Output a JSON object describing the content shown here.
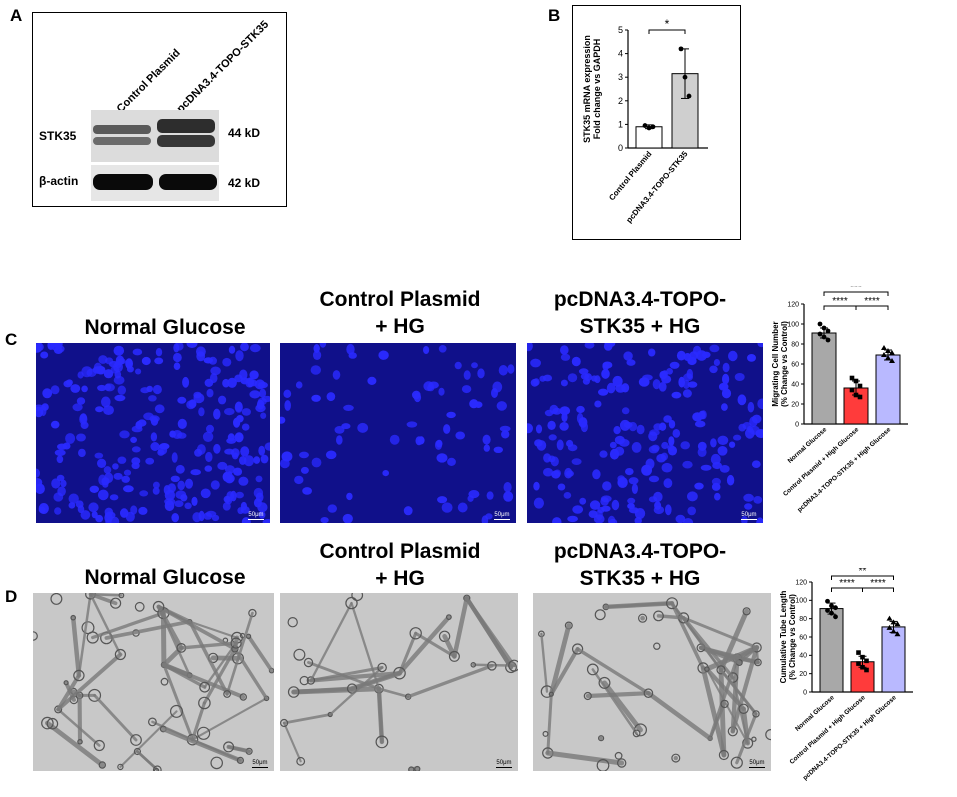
{
  "panel_labels": {
    "a": "A",
    "b": "B",
    "c": "C",
    "d": "D"
  },
  "panel_a": {
    "lane_labels": [
      "Control Plasmid",
      "pcDNA3.4-TOPO-STK35"
    ],
    "row_labels": [
      "STK35",
      "β-actin"
    ],
    "sizes": [
      "44 kD",
      "42 kD"
    ]
  },
  "conditions": {
    "normal": "Normal Glucose",
    "control": "Control Plasmid\n+ HG",
    "stk35": "pcDNA3.4-TOPO-\nSTK35 + HG"
  },
  "scale_bar_label": "50μm",
  "colors": {
    "nuclei_bg": "#10108a",
    "nuclei": "#2a2aff",
    "bar_normal": "#a8a8a8",
    "bar_control": "#ff3b3b",
    "bar_stk35": "#b9b9ff",
    "brightfield_bg": "#c8c8c8"
  },
  "chart_data": [
    {
      "type": "bar",
      "panel": "B",
      "categories": [
        "Control Plasmid",
        "pcDNA3.4-TOPO-STK35"
      ],
      "values": [
        0.9,
        3.15
      ],
      "errors": [
        0.08,
        1.05
      ],
      "points": [
        [
          0.95,
          0.85,
          0.9
        ],
        [
          4.2,
          3.0,
          2.2
        ]
      ],
      "ylabel_lines": [
        "STK35 mRNA expression",
        "Fold change vs GAPDH"
      ],
      "ylim": [
        0,
        5
      ],
      "yticks": [
        "0",
        "1",
        "2",
        "3",
        "4",
        "5"
      ],
      "significance": [
        {
          "from": 0,
          "to": 1,
          "label": "*"
        }
      ]
    },
    {
      "type": "bar",
      "panel": "C",
      "categories": [
        "Normal Glucose",
        "Control Plasmid + High Glucose",
        "pcDNA3.4-TOPO-STK35 + High Glucose"
      ],
      "values": [
        91,
        36,
        69
      ],
      "errors": [
        5,
        7,
        5
      ],
      "points": [
        [
          100,
          96,
          93,
          90,
          87,
          84
        ],
        [
          46,
          43,
          38,
          34,
          29,
          27
        ],
        [
          76,
          73,
          71,
          69,
          66,
          63
        ]
      ],
      "ylabel_lines": [
        "Migrating Cell Number",
        "(% Change vs Control)"
      ],
      "ylim": [
        0,
        120
      ],
      "yticks": [
        "0",
        "20",
        "40",
        "60",
        "80",
        "100",
        "120"
      ],
      "significance": [
        {
          "from": 0,
          "to": 1,
          "label": "****"
        },
        {
          "from": 1,
          "to": 2,
          "label": "****"
        },
        {
          "from": 0,
          "to": 2,
          "label": "***"
        }
      ]
    },
    {
      "type": "bar",
      "panel": "D",
      "categories": [
        "Normal Glucose",
        "Control Plasmid + High Glucose",
        "pcDNA3.4-TOPO-STK35 + High Glucose"
      ],
      "values": [
        91,
        33,
        71
      ],
      "errors": [
        6,
        6,
        6
      ],
      "points": [
        [
          99,
          94,
          92,
          89,
          86,
          82
        ],
        [
          43,
          38,
          34,
          31,
          27,
          24
        ],
        [
          80,
          76,
          74,
          70,
          66,
          63
        ]
      ],
      "ylabel_lines": [
        "Cumulative Tube Length",
        "(% Change vs Control)"
      ],
      "ylim": [
        0,
        120
      ],
      "yticks": [
        "0",
        "20",
        "40",
        "60",
        "80",
        "100",
        "120"
      ],
      "significance": [
        {
          "from": 0,
          "to": 1,
          "label": "****"
        },
        {
          "from": 1,
          "to": 2,
          "label": "****"
        },
        {
          "from": 0,
          "to": 2,
          "label": "**"
        }
      ]
    }
  ]
}
